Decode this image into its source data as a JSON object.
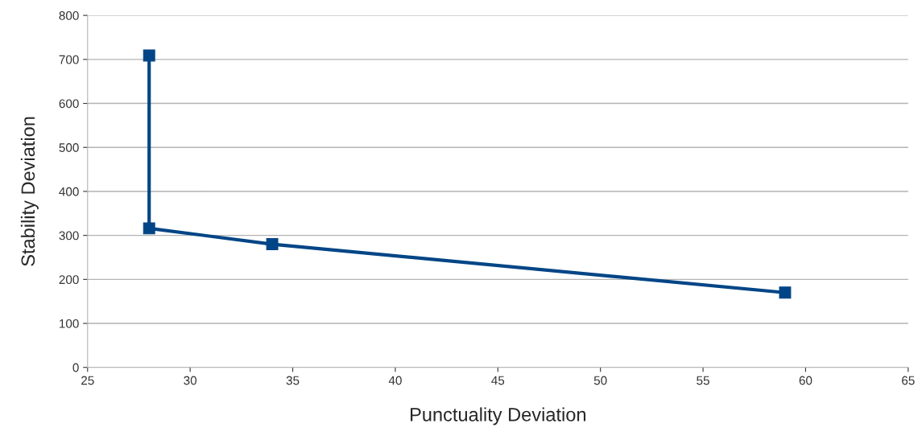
{
  "chart_data": {
    "type": "line",
    "xlabel": "Punctuality Deviation",
    "ylabel": "Stability Deviation",
    "series": [
      {
        "color": "#004586",
        "x": [
          28,
          28,
          34,
          59
        ],
        "values": [
          709,
          316,
          280,
          170
        ]
      }
    ],
    "xlim": [
      25,
      65
    ],
    "xticks": [
      25,
      30,
      35,
      40,
      45,
      50,
      55,
      60,
      65
    ],
    "ylim": [
      0,
      800
    ],
    "yticks": [
      0,
      100,
      200,
      300,
      400,
      500,
      600,
      700,
      800
    ],
    "grid": "y",
    "marker": "square",
    "line_style": "solid"
  }
}
